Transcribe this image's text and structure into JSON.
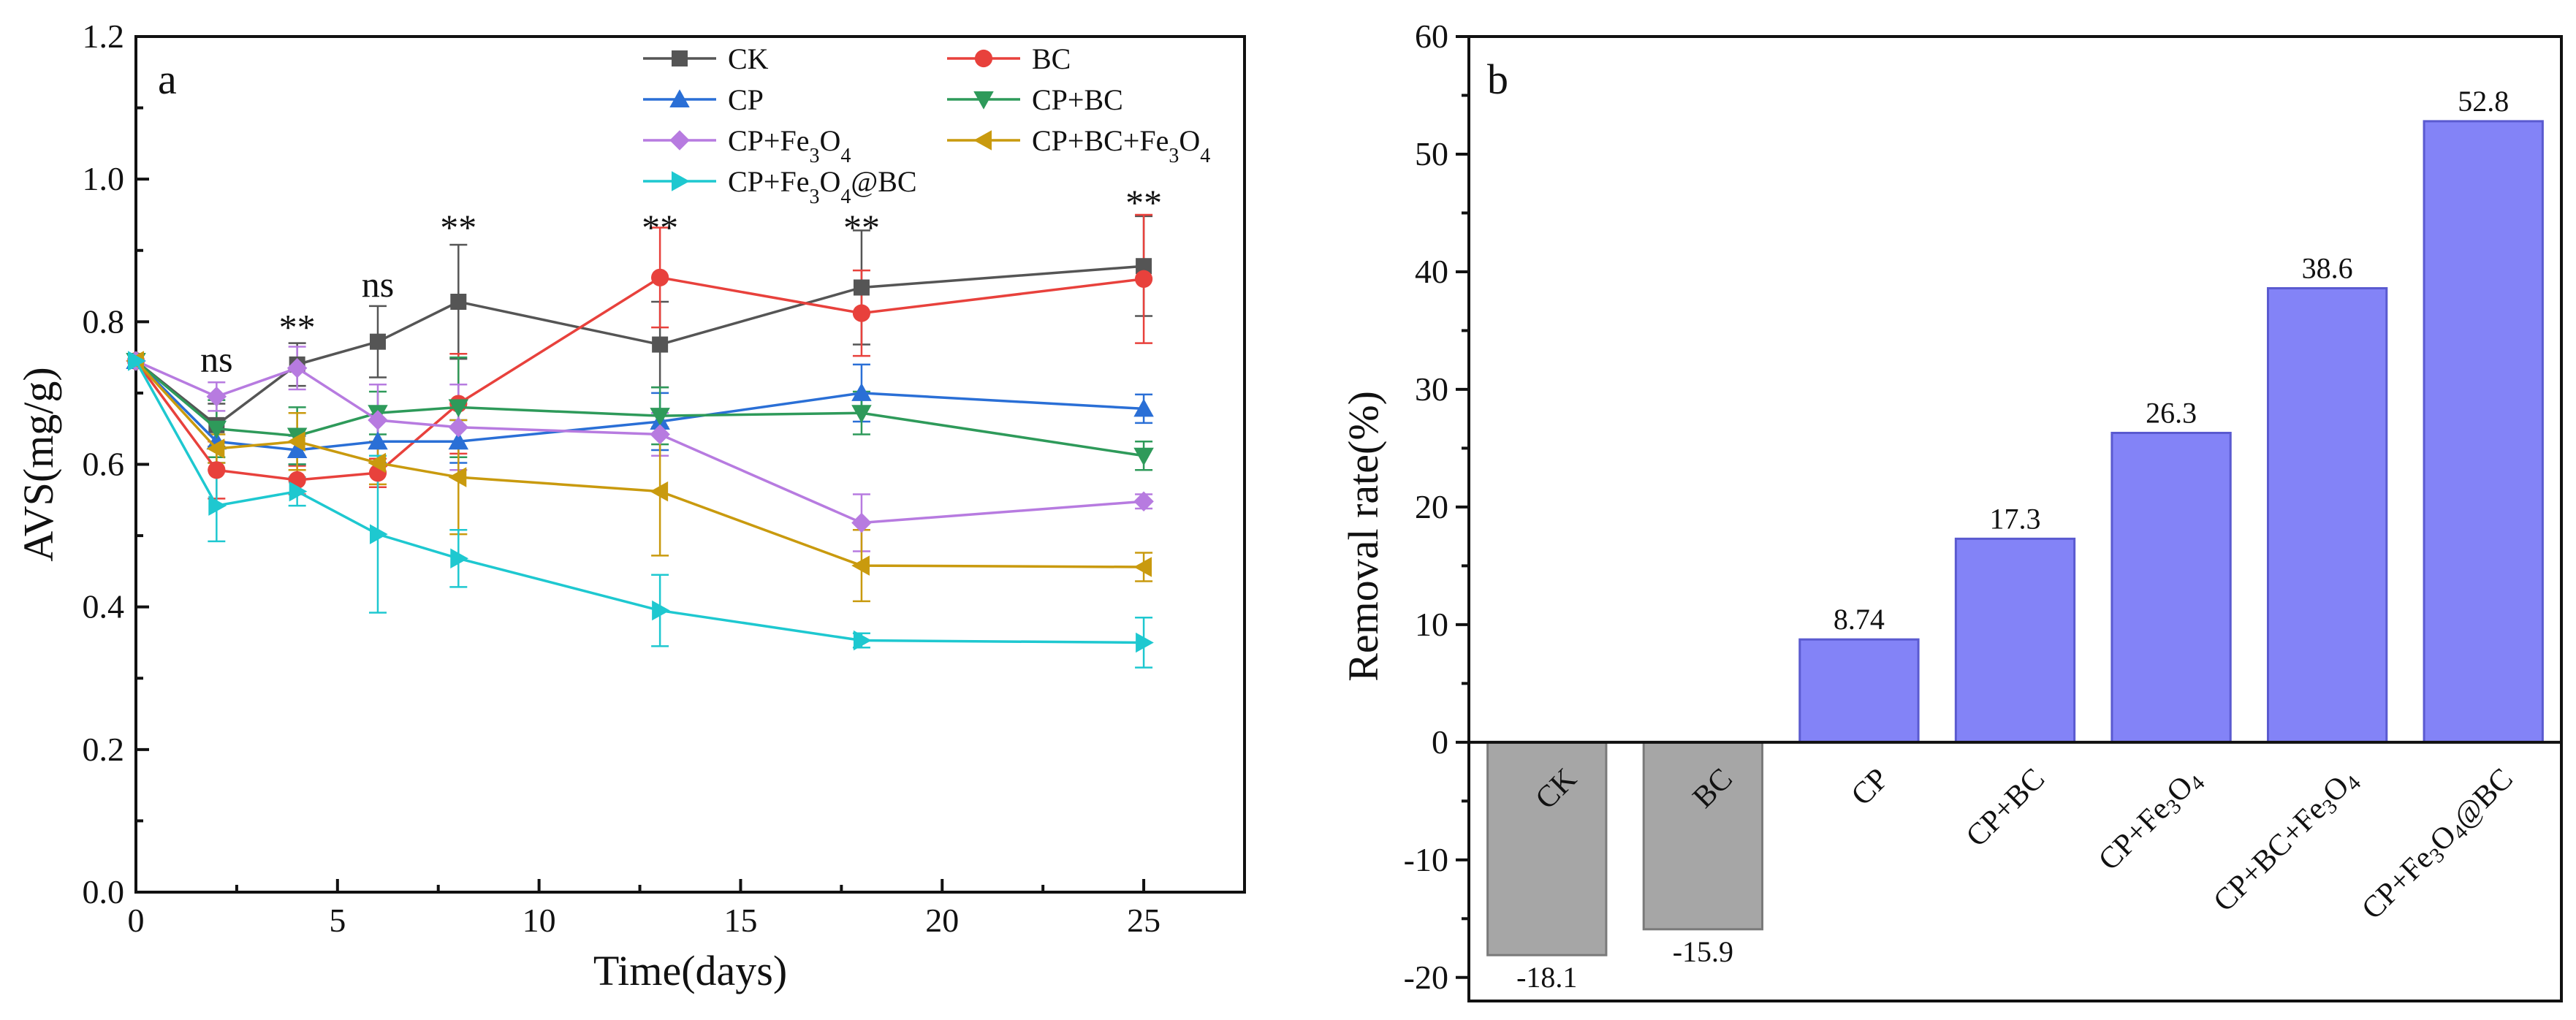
{
  "chart_data": [
    {
      "type": "line",
      "panel_label": "a",
      "xlabel": "Time(days)",
      "ylabel": "AVS(mg/g)",
      "xlim": [
        0,
        27.5
      ],
      "ylim": [
        0.0,
        1.2
      ],
      "xticks": [
        0,
        5,
        10,
        15,
        20,
        25
      ],
      "yticks": [
        0.0,
        0.2,
        0.4,
        0.6,
        0.8,
        1.0,
        1.2
      ],
      "xtick_labels": [
        "0",
        "5",
        "10",
        "15",
        "20",
        "25"
      ],
      "ytick_labels": [
        "0.0",
        "0.2",
        "0.4",
        "0.6",
        "0.8",
        "1.0",
        "1.2"
      ],
      "legend_position": "top-right",
      "x": [
        0,
        2,
        4,
        6,
        8,
        13,
        18,
        25
      ],
      "series": [
        {
          "name": "CK",
          "name_parts": [
            [
              "CK",
              "n"
            ]
          ],
          "color": "#555555",
          "marker": "square",
          "values": [
            0.745,
            0.655,
            0.74,
            0.772,
            0.828,
            0.768,
            0.848,
            0.878
          ],
          "errors": [
            0.01,
            0.03,
            0.03,
            0.05,
            0.08,
            0.06,
            0.08,
            0.07
          ]
        },
        {
          "name": "BC",
          "name_parts": [
            [
              "BC",
              "n"
            ]
          ],
          "color": "#e8413c",
          "marker": "circle",
          "values": [
            0.745,
            0.592,
            0.578,
            0.588,
            0.685,
            0.862,
            0.812,
            0.86
          ],
          "errors": [
            0.01,
            0.04,
            0.02,
            0.02,
            0.07,
            0.07,
            0.06,
            0.09
          ]
        },
        {
          "name": "CP",
          "name_parts": [
            [
              "CP",
              "n"
            ]
          ],
          "color": "#2a6fd6",
          "marker": "triangle-up",
          "values": [
            0.745,
            0.632,
            0.62,
            0.632,
            0.632,
            0.66,
            0.7,
            0.678
          ],
          "errors": [
            0.01,
            0.03,
            0.02,
            0.03,
            0.03,
            0.04,
            0.04,
            0.02
          ]
        },
        {
          "name": "CP+BC",
          "name_parts": [
            [
              "CP+BC",
              "n"
            ]
          ],
          "color": "#2e9a5a",
          "marker": "triangle-down",
          "values": [
            0.745,
            0.65,
            0.64,
            0.672,
            0.68,
            0.668,
            0.672,
            0.612
          ],
          "errors": [
            0.01,
            0.04,
            0.04,
            0.03,
            0.07,
            0.04,
            0.03,
            0.02
          ]
        },
        {
          "name": "CP+Fe3O4",
          "name_parts": [
            [
              "CP+Fe",
              "n"
            ],
            [
              "3",
              "sub"
            ],
            [
              "O",
              "n"
            ],
            [
              "4",
              "sub"
            ]
          ],
          "color": "#b77be0",
          "marker": "diamond",
          "values": [
            0.745,
            0.695,
            0.735,
            0.662,
            0.652,
            0.642,
            0.518,
            0.548
          ],
          "errors": [
            0.01,
            0.02,
            0.03,
            0.05,
            0.06,
            0.03,
            0.04,
            0.01
          ]
        },
        {
          "name": "CP+BC+Fe3O4",
          "name_parts": [
            [
              "CP+BC+Fe",
              "n"
            ],
            [
              "3",
              "sub"
            ],
            [
              "O",
              "n"
            ],
            [
              "4",
              "sub"
            ]
          ],
          "color": "#c99a0e",
          "marker": "triangle-left",
          "values": [
            0.745,
            0.622,
            0.632,
            0.602,
            0.582,
            0.562,
            0.458,
            0.456
          ],
          "errors": [
            0.01,
            0.02,
            0.04,
            0.03,
            0.08,
            0.09,
            0.05,
            0.02
          ]
        },
        {
          "name": "CP+Fe3O4@BC",
          "name_parts": [
            [
              "CP+Fe",
              "n"
            ],
            [
              "3",
              "sub"
            ],
            [
              "O",
              "n"
            ],
            [
              "4",
              "sub"
            ],
            [
              "@BC",
              "n"
            ]
          ],
          "color": "#1ec8d0",
          "marker": "triangle-right",
          "values": [
            0.745,
            0.542,
            0.562,
            0.502,
            0.468,
            0.395,
            0.353,
            0.35
          ],
          "errors": [
            0.01,
            0.05,
            0.02,
            0.11,
            0.04,
            0.05,
            0.01,
            0.035
          ]
        }
      ],
      "annotations": [
        {
          "x": 2,
          "y": 0.73,
          "text": "ns"
        },
        {
          "x": 4,
          "y": 0.775,
          "text": "**"
        },
        {
          "x": 6,
          "y": 0.835,
          "text": "ns"
        },
        {
          "x": 8,
          "y": 0.915,
          "text": "**"
        },
        {
          "x": 13,
          "y": 0.915,
          "text": "**"
        },
        {
          "x": 18,
          "y": 0.915,
          "text": "**"
        },
        {
          "x": 25,
          "y": 0.95,
          "text": "**"
        }
      ]
    },
    {
      "type": "bar",
      "panel_label": "b",
      "ylabel": "Removal rate(%)",
      "ylim": [
        -22,
        60
      ],
      "yticks": [
        -20,
        -10,
        0,
        10,
        20,
        30,
        40,
        50,
        60
      ],
      "ytick_labels": [
        "-20",
        "-10",
        "0",
        "10",
        "20",
        "30",
        "40",
        "50",
        "60"
      ],
      "categories": [
        "CK",
        "BC",
        "CP",
        "CP+BC",
        "CP+Fe3O4",
        "CP+BC+Fe3O4",
        "CP+Fe3O4@BC"
      ],
      "category_parts": [
        [
          [
            "CK",
            "n"
          ]
        ],
        [
          [
            "BC",
            "n"
          ]
        ],
        [
          [
            "CP",
            "n"
          ]
        ],
        [
          [
            "CP+BC",
            "n"
          ]
        ],
        [
          [
            "CP+Fe",
            "n"
          ],
          [
            "3",
            "sub"
          ],
          [
            "O",
            "n"
          ],
          [
            "4",
            "sub"
          ]
        ],
        [
          [
            "CP+BC+Fe",
            "n"
          ],
          [
            "3",
            "sub"
          ],
          [
            "O",
            "n"
          ],
          [
            "4",
            "sub"
          ]
        ],
        [
          [
            "CP+Fe",
            "n"
          ],
          [
            "3",
            "sub"
          ],
          [
            "O",
            "n"
          ],
          [
            "4",
            "sub"
          ],
          [
            "@BC",
            "n"
          ]
        ]
      ],
      "values": [
        -18.1,
        -15.9,
        8.74,
        17.3,
        26.3,
        38.6,
        52.8
      ],
      "value_labels": [
        "-18.1",
        "-15.9",
        "8.74",
        "17.3",
        "26.3",
        "38.6",
        "52.8"
      ],
      "colors": {
        "negative": "#a6a6a6",
        "positive": "#8383f7",
        "negative_edge": "#7a7a7a",
        "positive_edge": "#5a5ad0"
      }
    }
  ]
}
